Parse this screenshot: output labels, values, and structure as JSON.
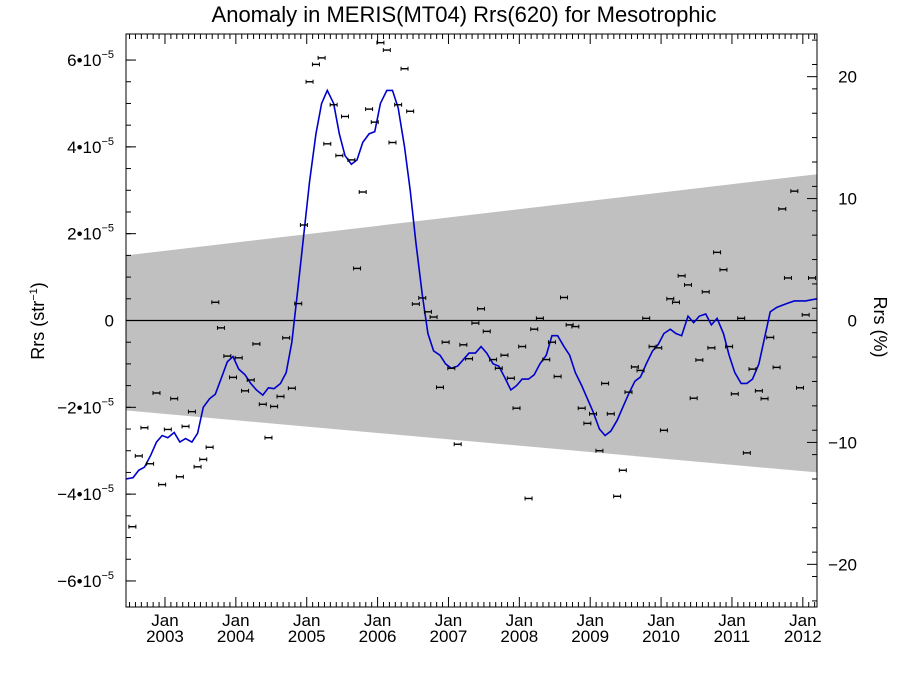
{
  "chart_data": {
    "type": "line",
    "title": "Anomaly in MERIS(MT04) Rrs(620) for Mesotrophic",
    "ylabel_left_main": "Rrs (str",
    "ylabel_left_sup": "−1",
    "ylabel_left_close": ")",
    "ylabel_right": "Rrs (%)",
    "xlim": [
      2002.45,
      2012.2
    ],
    "ylim_left": [
      -6.6e-05,
      6.6e-05
    ],
    "ylim_right": [
      -23.5,
      23.5
    ],
    "grid": false,
    "left_ticks": [
      {
        "value": -6e-05,
        "mant": "−6•10",
        "exp": "−5"
      },
      {
        "value": -4e-05,
        "mant": "−4•10",
        "exp": "−5"
      },
      {
        "value": -2e-05,
        "mant": "−2•10",
        "exp": "−5"
      },
      {
        "value": 0,
        "mant": "0",
        "exp": ""
      },
      {
        "value": 2e-05,
        "mant": "2•10",
        "exp": "−5"
      },
      {
        "value": 4e-05,
        "mant": "4•10",
        "exp": "−5"
      },
      {
        "value": 6e-05,
        "mant": "6•10",
        "exp": "−5"
      }
    ],
    "right_ticks": [
      {
        "value": -20,
        "label": "−20"
      },
      {
        "value": -10,
        "label": "−10"
      },
      {
        "value": 0,
        "label": "0"
      },
      {
        "value": 10,
        "label": "10"
      },
      {
        "value": 20,
        "label": "20"
      }
    ],
    "x_ticks": [
      {
        "value": 2003.0,
        "month": "Jan",
        "year": "2003"
      },
      {
        "value": 2004.0,
        "month": "Jan",
        "year": "2004"
      },
      {
        "value": 2005.0,
        "month": "Jan",
        "year": "2005"
      },
      {
        "value": 2006.0,
        "month": "Jan",
        "year": "2006"
      },
      {
        "value": 2007.0,
        "month": "Jan",
        "year": "2007"
      },
      {
        "value": 2008.0,
        "month": "Jan",
        "year": "2008"
      },
      {
        "value": 2009.0,
        "month": "Jan",
        "year": "2009"
      },
      {
        "value": 2010.0,
        "month": "Jan",
        "year": "2010"
      },
      {
        "value": 2011.0,
        "month": "Jan",
        "year": "2011"
      },
      {
        "value": 2012.0,
        "month": "Jan",
        "year": "2012"
      }
    ],
    "band": {
      "color": "#c0c0c0",
      "upper": [
        [
          2002.45,
          1.5e-05
        ],
        [
          2012.2,
          3.37e-05
        ]
      ],
      "lower": [
        [
          2002.45,
          -2.07e-05
        ],
        [
          2012.2,
          -3.5e-05
        ]
      ]
    },
    "zero_line": 0,
    "series": [
      {
        "type": "scatter",
        "color": "#000000",
        "points": [
          [
            2002.54,
            -4.75e-05
          ],
          [
            2002.63,
            -3.12e-05
          ],
          [
            2002.71,
            -2.47e-05
          ],
          [
            2002.79,
            -3.3e-05
          ],
          [
            2002.88,
            -1.67e-05
          ],
          [
            2002.96,
            -3.78e-05
          ],
          [
            2003.04,
            -2.51e-05
          ],
          [
            2003.13,
            -1.8e-05
          ],
          [
            2003.21,
            -3.6e-05
          ],
          [
            2003.29,
            -2.44e-05
          ],
          [
            2003.38,
            -2.1e-05
          ],
          [
            2003.46,
            -3.37e-05
          ],
          [
            2003.54,
            -3.2e-05
          ],
          [
            2003.63,
            -2.92e-05
          ],
          [
            2003.71,
            4.2e-06
          ],
          [
            2003.79,
            -1.7e-06
          ],
          [
            2003.88,
            -8.2e-06
          ],
          [
            2003.96,
            -1.31e-05
          ],
          [
            2004.04,
            -8.6e-06
          ],
          [
            2004.13,
            -1.62e-05
          ],
          [
            2004.21,
            -1.37e-05
          ],
          [
            2004.29,
            -5.4e-06
          ],
          [
            2004.38,
            -1.93e-05
          ],
          [
            2004.46,
            -2.7e-05
          ],
          [
            2004.54,
            -1.98e-05
          ],
          [
            2004.63,
            -1.75e-05
          ],
          [
            2004.71,
            -4e-06
          ],
          [
            2004.79,
            -1.56e-05
          ],
          [
            2004.88,
            3.9e-06
          ],
          [
            2004.96,
            2.2e-05
          ],
          [
            2005.04,
            5.5e-05
          ],
          [
            2005.13,
            5.9e-05
          ],
          [
            2005.21,
            6.05e-05
          ],
          [
            2005.29,
            4.07e-05
          ],
          [
            2005.38,
            4.97e-05
          ],
          [
            2005.46,
            3.8e-05
          ],
          [
            2005.54,
            4.7e-05
          ],
          [
            2005.63,
            3.7e-05
          ],
          [
            2005.71,
            1.2e-05
          ],
          [
            2005.79,
            2.96e-05
          ],
          [
            2005.88,
            4.87e-05
          ],
          [
            2005.96,
            4.57e-05
          ],
          [
            2006.04,
            6.4e-05
          ],
          [
            2006.13,
            6.23e-05
          ],
          [
            2006.21,
            4.1e-05
          ],
          [
            2006.29,
            4.97e-05
          ],
          [
            2006.38,
            5.8e-05
          ],
          [
            2006.46,
            4.82e-05
          ],
          [
            2006.54,
            3.8e-06
          ],
          [
            2006.63,
            5.2e-06
          ],
          [
            2006.71,
            2e-06
          ],
          [
            2006.79,
            8e-07
          ],
          [
            2006.88,
            -1.54e-05
          ],
          [
            2006.96,
            -5e-06
          ],
          [
            2007.04,
            -1.1e-05
          ],
          [
            2007.13,
            -2.85e-05
          ],
          [
            2007.21,
            -5.6e-06
          ],
          [
            2007.29,
            -8.8e-06
          ],
          [
            2007.38,
            -6e-07
          ],
          [
            2007.46,
            2.7e-06
          ],
          [
            2007.54,
            -2.5e-06
          ],
          [
            2007.63,
            -9e-06
          ],
          [
            2007.71,
            -1.1e-05
          ],
          [
            2007.79,
            -8e-06
          ],
          [
            2007.88,
            -1.33e-05
          ],
          [
            2007.96,
            -2.02e-05
          ],
          [
            2008.04,
            -6e-06
          ],
          [
            2008.13,
            -4.1e-05
          ],
          [
            2008.21,
            -2e-06
          ],
          [
            2008.29,
            5e-07
          ],
          [
            2008.38,
            -9e-06
          ],
          [
            2008.46,
            -5e-06
          ],
          [
            2008.54,
            -1.29e-05
          ],
          [
            2008.63,
            5.3e-06
          ],
          [
            2008.71,
            -1e-06
          ],
          [
            2008.79,
            -1.4e-06
          ],
          [
            2008.88,
            -2.02e-05
          ],
          [
            2008.96,
            -2.37e-05
          ],
          [
            2009.04,
            -2.15e-05
          ],
          [
            2009.13,
            -3e-05
          ],
          [
            2009.21,
            -1.45e-05
          ],
          [
            2009.29,
            -2.15e-05
          ],
          [
            2009.38,
            -4.05e-05
          ],
          [
            2009.46,
            -3.45e-05
          ],
          [
            2009.54,
            -1.65e-05
          ],
          [
            2009.63,
            -1.07e-05
          ],
          [
            2009.71,
            -1.15e-05
          ],
          [
            2009.79,
            5e-07
          ],
          [
            2009.88,
            -6e-06
          ],
          [
            2009.96,
            -6.3e-06
          ],
          [
            2010.04,
            -2.53e-05
          ],
          [
            2010.13,
            5e-06
          ],
          [
            2010.21,
            4.2e-06
          ],
          [
            2010.29,
            1.03e-05
          ],
          [
            2010.38,
            8.2e-06
          ],
          [
            2010.46,
            -1.79e-05
          ],
          [
            2010.54,
            -9.1e-06
          ],
          [
            2010.63,
            6.6e-06
          ],
          [
            2010.71,
            -6.3e-06
          ],
          [
            2010.79,
            1.57e-05
          ],
          [
            2010.88,
            1.17e-05
          ],
          [
            2010.96,
            -6e-06
          ],
          [
            2011.04,
            -1.69e-05
          ],
          [
            2011.13,
            5e-07
          ],
          [
            2011.21,
            -3.05e-05
          ],
          [
            2011.29,
            -1.12e-05
          ],
          [
            2011.38,
            -1.62e-05
          ],
          [
            2011.46,
            -1.8e-05
          ],
          [
            2011.54,
            -3.9e-06
          ],
          [
            2011.63,
            -1.08e-05
          ],
          [
            2011.71,
            2.57e-05
          ],
          [
            2011.79,
            9.8e-06
          ],
          [
            2011.88,
            2.98e-05
          ],
          [
            2011.96,
            -1.55e-05
          ],
          [
            2012.04,
            1.3e-06
          ],
          [
            2012.13,
            9.8e-06
          ]
        ]
      },
      {
        "type": "line",
        "color": "#0000cc",
        "points": [
          [
            2002.45,
            -3.65e-05
          ],
          [
            2002.55,
            -3.62e-05
          ],
          [
            2002.63,
            -3.45e-05
          ],
          [
            2002.71,
            -3.38e-05
          ],
          [
            2002.8,
            -3.1e-05
          ],
          [
            2002.88,
            -2.8e-05
          ],
          [
            2002.96,
            -2.65e-05
          ],
          [
            2003.04,
            -2.7e-05
          ],
          [
            2003.13,
            -2.58e-05
          ],
          [
            2003.21,
            -2.8e-05
          ],
          [
            2003.29,
            -2.72e-05
          ],
          [
            2003.38,
            -2.8e-05
          ],
          [
            2003.46,
            -2.6e-05
          ],
          [
            2003.54,
            -2e-05
          ],
          [
            2003.63,
            -1.8e-05
          ],
          [
            2003.71,
            -1.7e-05
          ],
          [
            2003.79,
            -1.35e-05
          ],
          [
            2003.88,
            -9.5e-06
          ],
          [
            2003.96,
            -8.3e-06
          ],
          [
            2004.04,
            -1.12e-05
          ],
          [
            2004.13,
            -1.25e-05
          ],
          [
            2004.21,
            -1.45e-05
          ],
          [
            2004.29,
            -1.6e-05
          ],
          [
            2004.38,
            -1.72e-05
          ],
          [
            2004.46,
            -1.55e-05
          ],
          [
            2004.54,
            -1.57e-05
          ],
          [
            2004.63,
            -1.45e-05
          ],
          [
            2004.71,
            -1.2e-05
          ],
          [
            2004.79,
            -5e-06
          ],
          [
            2004.88,
            8e-06
          ],
          [
            2004.96,
            2e-05
          ],
          [
            2005.04,
            3.2e-05
          ],
          [
            2005.13,
            4.3e-05
          ],
          [
            2005.21,
            5e-05
          ],
          [
            2005.29,
            5.3e-05
          ],
          [
            2005.38,
            5e-05
          ],
          [
            2005.46,
            4.3e-05
          ],
          [
            2005.54,
            3.8e-05
          ],
          [
            2005.63,
            3.6e-05
          ],
          [
            2005.71,
            3.7e-05
          ],
          [
            2005.79,
            4.1e-05
          ],
          [
            2005.88,
            4.3e-05
          ],
          [
            2005.96,
            4.35e-05
          ],
          [
            2006.04,
            5e-05
          ],
          [
            2006.13,
            5.3e-05
          ],
          [
            2006.21,
            5.3e-05
          ],
          [
            2006.29,
            4.9e-05
          ],
          [
            2006.38,
            4e-05
          ],
          [
            2006.46,
            3e-05
          ],
          [
            2006.54,
            1.8e-05
          ],
          [
            2006.63,
            6e-06
          ],
          [
            2006.71,
            -3e-06
          ],
          [
            2006.79,
            -7e-06
          ],
          [
            2006.88,
            -8e-06
          ],
          [
            2006.96,
            -1e-05
          ],
          [
            2007.04,
            -1.1e-05
          ],
          [
            2007.13,
            -1.05e-05
          ],
          [
            2007.21,
            -9e-06
          ],
          [
            2007.29,
            -7.5e-06
          ],
          [
            2007.38,
            -7.5e-06
          ],
          [
            2007.46,
            -6e-06
          ],
          [
            2007.54,
            -7.5e-06
          ],
          [
            2007.63,
            -1e-05
          ],
          [
            2007.71,
            -1.05e-05
          ],
          [
            2007.79,
            -1.3e-05
          ],
          [
            2007.88,
            -1.6e-05
          ],
          [
            2007.96,
            -1.5e-05
          ],
          [
            2008.04,
            -1.35e-05
          ],
          [
            2008.13,
            -1.35e-05
          ],
          [
            2008.21,
            -1.25e-05
          ],
          [
            2008.29,
            -1e-05
          ],
          [
            2008.38,
            -8e-06
          ],
          [
            2008.46,
            -3.5e-06
          ],
          [
            2008.54,
            -3.5e-06
          ],
          [
            2008.63,
            -6e-06
          ],
          [
            2008.71,
            -8e-06
          ],
          [
            2008.79,
            -1.2e-05
          ],
          [
            2008.88,
            -1.5e-05
          ],
          [
            2008.96,
            -1.8e-05
          ],
          [
            2009.04,
            -2.1e-05
          ],
          [
            2009.13,
            -2.5e-05
          ],
          [
            2009.21,
            -2.65e-05
          ],
          [
            2009.29,
            -2.55e-05
          ],
          [
            2009.38,
            -2.3e-05
          ],
          [
            2009.46,
            -2e-05
          ],
          [
            2009.54,
            -1.7e-05
          ],
          [
            2009.63,
            -1.4e-05
          ],
          [
            2009.71,
            -1.3e-05
          ],
          [
            2009.79,
            -1e-05
          ],
          [
            2009.88,
            -7e-06
          ],
          [
            2009.96,
            -5.5e-06
          ],
          [
            2010.04,
            -3e-06
          ],
          [
            2010.13,
            -2e-06
          ],
          [
            2010.21,
            -3e-06
          ],
          [
            2010.29,
            -3.5e-06
          ],
          [
            2010.38,
            1e-06
          ],
          [
            2010.46,
            -5e-07
          ],
          [
            2010.54,
            1e-06
          ],
          [
            2010.63,
            1.5e-06
          ],
          [
            2010.71,
            -1e-06
          ],
          [
            2010.79,
            5e-07
          ],
          [
            2010.88,
            -3e-06
          ],
          [
            2010.96,
            -8e-06
          ],
          [
            2011.04,
            -1.2e-05
          ],
          [
            2011.13,
            -1.45e-05
          ],
          [
            2011.21,
            -1.45e-05
          ],
          [
            2011.29,
            -1.35e-05
          ],
          [
            2011.38,
            -1e-05
          ],
          [
            2011.46,
            -4e-06
          ],
          [
            2011.54,
            2e-06
          ],
          [
            2011.63,
            3e-06
          ],
          [
            2011.71,
            3.5e-06
          ],
          [
            2011.79,
            4e-06
          ],
          [
            2011.88,
            4.5e-06
          ],
          [
            2011.96,
            4.5e-06
          ],
          [
            2012.04,
            4.5e-06
          ],
          [
            2012.13,
            4.8e-06
          ],
          [
            2012.2,
            5e-06
          ]
        ]
      }
    ]
  }
}
